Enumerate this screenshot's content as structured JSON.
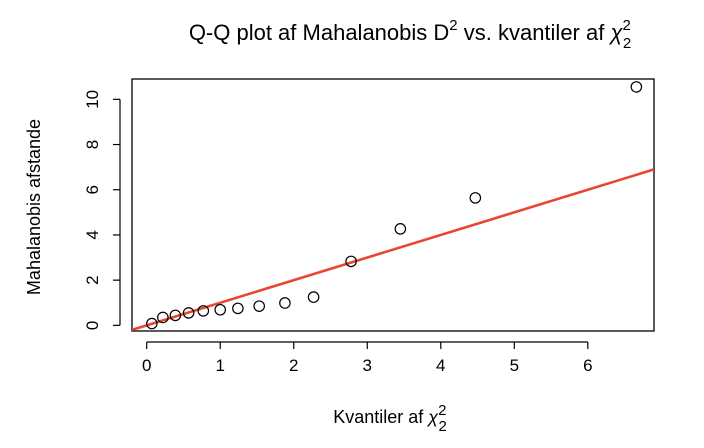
{
  "chart_data": {
    "type": "scatter",
    "title": {
      "prefix": "Q-Q plot af Mahalanobis D",
      "prefix_sup": "2",
      "suffix": " vs. kvantiler af ",
      "symbol": "χ",
      "symbol_sup": "2",
      "symbol_sub": "2"
    },
    "xlabel": {
      "text": "Kvantiler af ",
      "symbol": "χ",
      "symbol_sup": "2",
      "symbol_sub": "2"
    },
    "ylabel": "Mahalanobis afstande",
    "xlim": [
      -0.2,
      6.9
    ],
    "ylim": [
      -0.25,
      10.9
    ],
    "xticks": [
      0,
      1,
      2,
      3,
      4,
      5,
      6
    ],
    "yticks": [
      0,
      2,
      4,
      6,
      8,
      10
    ],
    "grid": false,
    "points": [
      {
        "x": 0.07,
        "y": 0.08
      },
      {
        "x": 0.22,
        "y": 0.35
      },
      {
        "x": 0.39,
        "y": 0.44
      },
      {
        "x": 0.57,
        "y": 0.55
      },
      {
        "x": 0.77,
        "y": 0.64
      },
      {
        "x": 1.0,
        "y": 0.69
      },
      {
        "x": 1.24,
        "y": 0.75
      },
      {
        "x": 1.53,
        "y": 0.85
      },
      {
        "x": 1.88,
        "y": 0.99
      },
      {
        "x": 2.27,
        "y": 1.25
      },
      {
        "x": 2.78,
        "y": 2.83
      },
      {
        "x": 3.45,
        "y": 4.27
      },
      {
        "x": 4.47,
        "y": 5.64
      },
      {
        "x": 6.66,
        "y": 10.55
      }
    ],
    "reference_line": {
      "intercept": 0.0,
      "slope": 1.0,
      "color": "#e8462f"
    },
    "point_color": "#000000"
  }
}
